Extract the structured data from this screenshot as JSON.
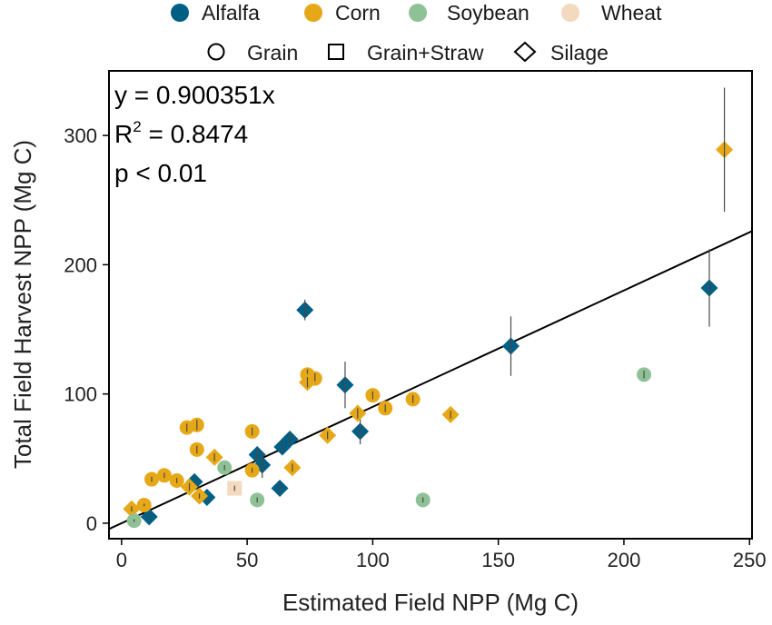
{
  "chart_data": {
    "type": "scatter",
    "xlabel": "Estimated Field NPP (Mg C)",
    "ylabel": "Total Field Harvest NPP (Mg C)",
    "xlim": [
      -5,
      251
    ],
    "ylim": [
      -12,
      350
    ],
    "xticks": [
      0,
      50,
      100,
      150,
      200,
      250
    ],
    "yticks": [
      0,
      100,
      200,
      300
    ],
    "xtick_labels": [
      "0",
      "50",
      "100",
      "150",
      "200",
      "250"
    ],
    "ytick_labels": [
      "0",
      "100",
      "200",
      "300"
    ],
    "grid": false,
    "legend_placement": "top",
    "crop_legend": {
      "items": [
        {
          "label": "Alfalfa",
          "color": "#005f85"
        },
        {
          "label": "Corn",
          "color": "#e6a817"
        },
        {
          "label": "Soybean",
          "color": "#8fc196"
        },
        {
          "label": "Wheat",
          "color": "#f3d9bd"
        }
      ]
    },
    "harvest_legend": {
      "items": [
        {
          "label": "Grain",
          "shape": "circle"
        },
        {
          "label": "Grain+Straw",
          "shape": "square"
        },
        {
          "label": "Silage",
          "shape": "diamond"
        }
      ]
    },
    "fit_line": {
      "slope": 0.900351,
      "intercept": 0,
      "x_range": [
        -5,
        251
      ]
    },
    "annotations": {
      "equation": "y = 0.900351x",
      "r2_prefix": "R",
      "r2_sup": "2",
      "r2_suffix": " = 0.8474",
      "p_value": "p < 0.01"
    },
    "points": [
      {
        "crop": "Alfalfa",
        "shape": "diamond",
        "x": 11,
        "y": 5,
        "err": 2
      },
      {
        "crop": "Alfalfa",
        "shape": "diamond",
        "x": 29,
        "y": 32,
        "err": 3
      },
      {
        "crop": "Alfalfa",
        "shape": "diamond",
        "x": 34,
        "y": 20,
        "err": 2
      },
      {
        "crop": "Alfalfa",
        "shape": "diamond",
        "x": 54,
        "y": 53,
        "err": 5
      },
      {
        "crop": "Alfalfa",
        "shape": "diamond",
        "x": 56,
        "y": 45,
        "err": 10
      },
      {
        "crop": "Alfalfa",
        "shape": "diamond",
        "x": 63,
        "y": 27,
        "err": 5
      },
      {
        "crop": "Alfalfa",
        "shape": "diamond",
        "x": 64,
        "y": 59,
        "err": 5
      },
      {
        "crop": "Alfalfa",
        "shape": "diamond",
        "x": 67,
        "y": 65,
        "err": 5
      },
      {
        "crop": "Alfalfa",
        "shape": "diamond",
        "x": 73,
        "y": 165,
        "err": 8
      },
      {
        "crop": "Alfalfa",
        "shape": "diamond",
        "x": 89,
        "y": 107,
        "err": 18
      },
      {
        "crop": "Alfalfa",
        "shape": "diamond",
        "x": 95,
        "y": 71,
        "err": 10
      },
      {
        "crop": "Alfalfa",
        "shape": "diamond",
        "x": 155,
        "y": 137,
        "err": 23
      },
      {
        "crop": "Alfalfa",
        "shape": "diamond",
        "x": 234,
        "y": 182,
        "err": 30
      },
      {
        "crop": "Corn",
        "shape": "circle",
        "x": 12,
        "y": 34,
        "err": 2
      },
      {
        "crop": "Corn",
        "shape": "circle",
        "x": 17,
        "y": 37,
        "err": 2
      },
      {
        "crop": "Corn",
        "shape": "circle",
        "x": 22,
        "y": 33,
        "err": 2
      },
      {
        "crop": "Corn",
        "shape": "circle",
        "x": 26,
        "y": 74,
        "err": 3
      },
      {
        "crop": "Corn",
        "shape": "circle",
        "x": 30,
        "y": 76,
        "err": 4
      },
      {
        "crop": "Corn",
        "shape": "circle",
        "x": 30,
        "y": 57,
        "err": 3
      },
      {
        "crop": "Corn",
        "shape": "circle",
        "x": 9,
        "y": 14,
        "err": 1
      },
      {
        "crop": "Corn",
        "shape": "circle",
        "x": 52,
        "y": 71,
        "err": 3
      },
      {
        "crop": "Corn",
        "shape": "circle",
        "x": 52,
        "y": 41,
        "err": 2
      },
      {
        "crop": "Corn",
        "shape": "circle",
        "x": 74,
        "y": 115,
        "err": 4
      },
      {
        "crop": "Corn",
        "shape": "circle",
        "x": 77,
        "y": 112,
        "err": 4
      },
      {
        "crop": "Corn",
        "shape": "circle",
        "x": 100,
        "y": 99,
        "err": 3
      },
      {
        "crop": "Corn",
        "shape": "circle",
        "x": 105,
        "y": 89,
        "err": 3
      },
      {
        "crop": "Corn",
        "shape": "circle",
        "x": 116,
        "y": 96,
        "err": 3
      },
      {
        "crop": "Corn",
        "shape": "diamond",
        "x": 4,
        "y": 11,
        "err": 2
      },
      {
        "crop": "Corn",
        "shape": "diamond",
        "x": 27,
        "y": 28,
        "err": 3
      },
      {
        "crop": "Corn",
        "shape": "diamond",
        "x": 31,
        "y": 21,
        "err": 2
      },
      {
        "crop": "Corn",
        "shape": "diamond",
        "x": 37,
        "y": 51,
        "err": 3
      },
      {
        "crop": "Corn",
        "shape": "diamond",
        "x": 68,
        "y": 43,
        "err": 3
      },
      {
        "crop": "Corn",
        "shape": "diamond",
        "x": 74,
        "y": 109,
        "err": 4
      },
      {
        "crop": "Corn",
        "shape": "diamond",
        "x": 82,
        "y": 68,
        "err": 3
      },
      {
        "crop": "Corn",
        "shape": "diamond",
        "x": 94,
        "y": 85,
        "err": 4
      },
      {
        "crop": "Corn",
        "shape": "diamond",
        "x": 131,
        "y": 84,
        "err": 3
      },
      {
        "crop": "Corn",
        "shape": "diamond",
        "x": 240,
        "y": 289,
        "err": 48
      },
      {
        "crop": "Soybean",
        "shape": "circle",
        "x": 5,
        "y": 2,
        "err": 1
      },
      {
        "crop": "Soybean",
        "shape": "circle",
        "x": 41,
        "y": 43,
        "err": 2
      },
      {
        "crop": "Soybean",
        "shape": "circle",
        "x": 54,
        "y": 18,
        "err": 2
      },
      {
        "crop": "Soybean",
        "shape": "circle",
        "x": 120,
        "y": 18,
        "err": 2
      },
      {
        "crop": "Soybean",
        "shape": "circle",
        "x": 208,
        "y": 115,
        "err": 3
      },
      {
        "crop": "Wheat",
        "shape": "square",
        "x": 45,
        "y": 27,
        "err": 2
      }
    ]
  }
}
